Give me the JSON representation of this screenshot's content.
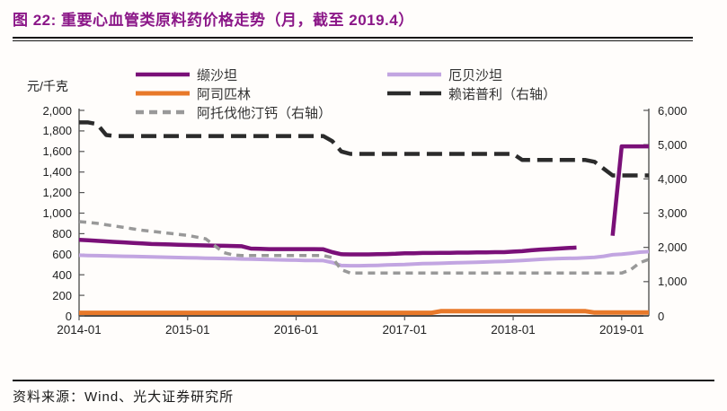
{
  "header": {
    "title": "图 22: 重要心血管类原料药价格走势（月，截至 2019.4）",
    "title_color": "#8B1788"
  },
  "footer": {
    "source": "资料来源：Wind、光大证券研究所"
  },
  "chart_data": {
    "type": "line",
    "unit_label": "元/千克",
    "x_tick_labels": [
      "2014-01",
      "2015-01",
      "2016-01",
      "2017-01",
      "2018-01",
      "2019-01"
    ],
    "left_axis": {
      "min": 0,
      "max": 2000,
      "step": 200,
      "tick_labels": [
        "0",
        "200",
        "400",
        "600",
        "800",
        "1,000",
        "1,200",
        "1,400",
        "1,600",
        "1,800",
        "2,000"
      ]
    },
    "right_axis": {
      "min": 0,
      "max": 6000,
      "step": 1000,
      "tick_labels": [
        "0",
        "1,000",
        "2,000",
        "3,000",
        "4,000",
        "5,000",
        "6,000"
      ]
    },
    "x_months": [
      "2014-01",
      "2014-02",
      "2014-03",
      "2014-04",
      "2014-05",
      "2014-06",
      "2014-07",
      "2014-08",
      "2014-09",
      "2014-10",
      "2014-11",
      "2014-12",
      "2015-01",
      "2015-02",
      "2015-03",
      "2015-04",
      "2015-05",
      "2015-06",
      "2015-07",
      "2015-08",
      "2015-09",
      "2015-10",
      "2015-11",
      "2015-12",
      "2016-01",
      "2016-02",
      "2016-03",
      "2016-04",
      "2016-05",
      "2016-06",
      "2016-07",
      "2016-08",
      "2016-09",
      "2016-10",
      "2016-11",
      "2016-12",
      "2017-01",
      "2017-02",
      "2017-03",
      "2017-04",
      "2017-05",
      "2017-06",
      "2017-07",
      "2017-08",
      "2017-09",
      "2017-10",
      "2017-11",
      "2017-12",
      "2018-01",
      "2018-02",
      "2018-03",
      "2018-04",
      "2018-05",
      "2018-06",
      "2018-07",
      "2018-08",
      "2018-09",
      "2018-10",
      "2018-11",
      "2018-12",
      "2019-01",
      "2019-02",
      "2019-03",
      "2019-04"
    ],
    "series": [
      {
        "id": "irbesartan",
        "label": "厄贝沙坦",
        "axis": "left",
        "color": "#C2A5E1",
        "dash": null,
        "width": 4,
        "legend_dash": null,
        "values": [
          590,
          588,
          586,
          584,
          582,
          580,
          578,
          576,
          574,
          572,
          570,
          568,
          566,
          564,
          562,
          560,
          558,
          556,
          554,
          552,
          550,
          548,
          546,
          544,
          542,
          540,
          540,
          538,
          520,
          490,
          488,
          488,
          490,
          492,
          495,
          498,
          500,
          505,
          508,
          510,
          512,
          515,
          518,
          520,
          522,
          525,
          528,
          530,
          535,
          540,
          545,
          550,
          555,
          558,
          560,
          562,
          565,
          570,
          580,
          595,
          600,
          610,
          620,
          625
        ]
      },
      {
        "id": "valsartan",
        "label": "缬沙坦",
        "axis": "left",
        "color": "#7A1078",
        "dash": null,
        "width": 4.5,
        "legend_dash": null,
        "values": [
          740,
          735,
          730,
          725,
          720,
          715,
          710,
          705,
          700,
          698,
          695,
          692,
          690,
          688,
          686,
          684,
          682,
          680,
          678,
          655,
          652,
          650,
          650,
          650,
          650,
          650,
          650,
          648,
          620,
          600,
          598,
          598,
          598,
          600,
          602,
          604,
          610,
          610,
          612,
          612,
          614,
          614,
          616,
          616,
          618,
          618,
          620,
          620,
          625,
          630,
          638,
          645,
          650,
          655,
          660,
          665,
          null,
          null,
          null,
          780,
          1650,
          1650,
          1650,
          1650
        ]
      },
      {
        "id": "aspirin",
        "label": "阿司匹林",
        "axis": "left",
        "color": "#E8792A",
        "dash": null,
        "width": 5,
        "legend_dash": null,
        "values": [
          30,
          30,
          30,
          30,
          30,
          30,
          30,
          30,
          30,
          30,
          30,
          30,
          30,
          30,
          30,
          30,
          30,
          30,
          30,
          30,
          30,
          30,
          30,
          30,
          30,
          30,
          30,
          30,
          30,
          30,
          30,
          30,
          30,
          30,
          30,
          30,
          30,
          30,
          30,
          30,
          45,
          45,
          45,
          45,
          45,
          45,
          45,
          45,
          45,
          45,
          45,
          45,
          45,
          45,
          45,
          45,
          45,
          32,
          32,
          32,
          32,
          32,
          32,
          32
        ]
      },
      {
        "id": "atorvastatin",
        "label": "阿托伐他汀钙（右轴）",
        "axis": "right",
        "color": "#999999",
        "dash": "8,6",
        "width": 3.5,
        "legend_dash": "9,6",
        "values": [
          2750,
          2730,
          2700,
          2660,
          2620,
          2580,
          2540,
          2500,
          2470,
          2440,
          2410,
          2380,
          2350,
          2300,
          2250,
          2050,
          1850,
          1780,
          1760,
          1760,
          1760,
          1760,
          1760,
          1760,
          1760,
          1760,
          1760,
          1760,
          1700,
          1350,
          1250,
          1250,
          1250,
          1250,
          1250,
          1250,
          1250,
          1250,
          1250,
          1250,
          1250,
          1250,
          1250,
          1250,
          1250,
          1250,
          1250,
          1250,
          1250,
          1250,
          1250,
          1250,
          1250,
          1250,
          1250,
          1250,
          1250,
          1250,
          1250,
          1250,
          1250,
          1350,
          1550,
          1650
        ]
      },
      {
        "id": "lisinopril",
        "label": "赖诺普利（右轴）",
        "axis": "right",
        "color": "#2B2B2B",
        "dash": "17,8",
        "width": 4.5,
        "legend_dash": "26,10",
        "values": [
          5650,
          5650,
          5600,
          5280,
          5250,
          5250,
          5250,
          5250,
          5250,
          5250,
          5250,
          5250,
          5250,
          5250,
          5250,
          5250,
          5250,
          5250,
          5250,
          5250,
          5250,
          5250,
          5250,
          5250,
          5250,
          5250,
          5250,
          5250,
          5100,
          4800,
          4730,
          4730,
          4730,
          4730,
          4730,
          4730,
          4730,
          4730,
          4730,
          4730,
          4730,
          4730,
          4730,
          4730,
          4730,
          4730,
          4730,
          4730,
          4730,
          4550,
          4550,
          4550,
          4550,
          4550,
          4550,
          4550,
          4550,
          4500,
          4300,
          4100,
          4100,
          4100,
          4100,
          4100
        ]
      }
    ],
    "legend_layout": {
      "col1": [
        "valsartan",
        "aspirin",
        "atorvastatin"
      ],
      "col2": [
        "irbesartan",
        "lisinopril"
      ]
    }
  }
}
